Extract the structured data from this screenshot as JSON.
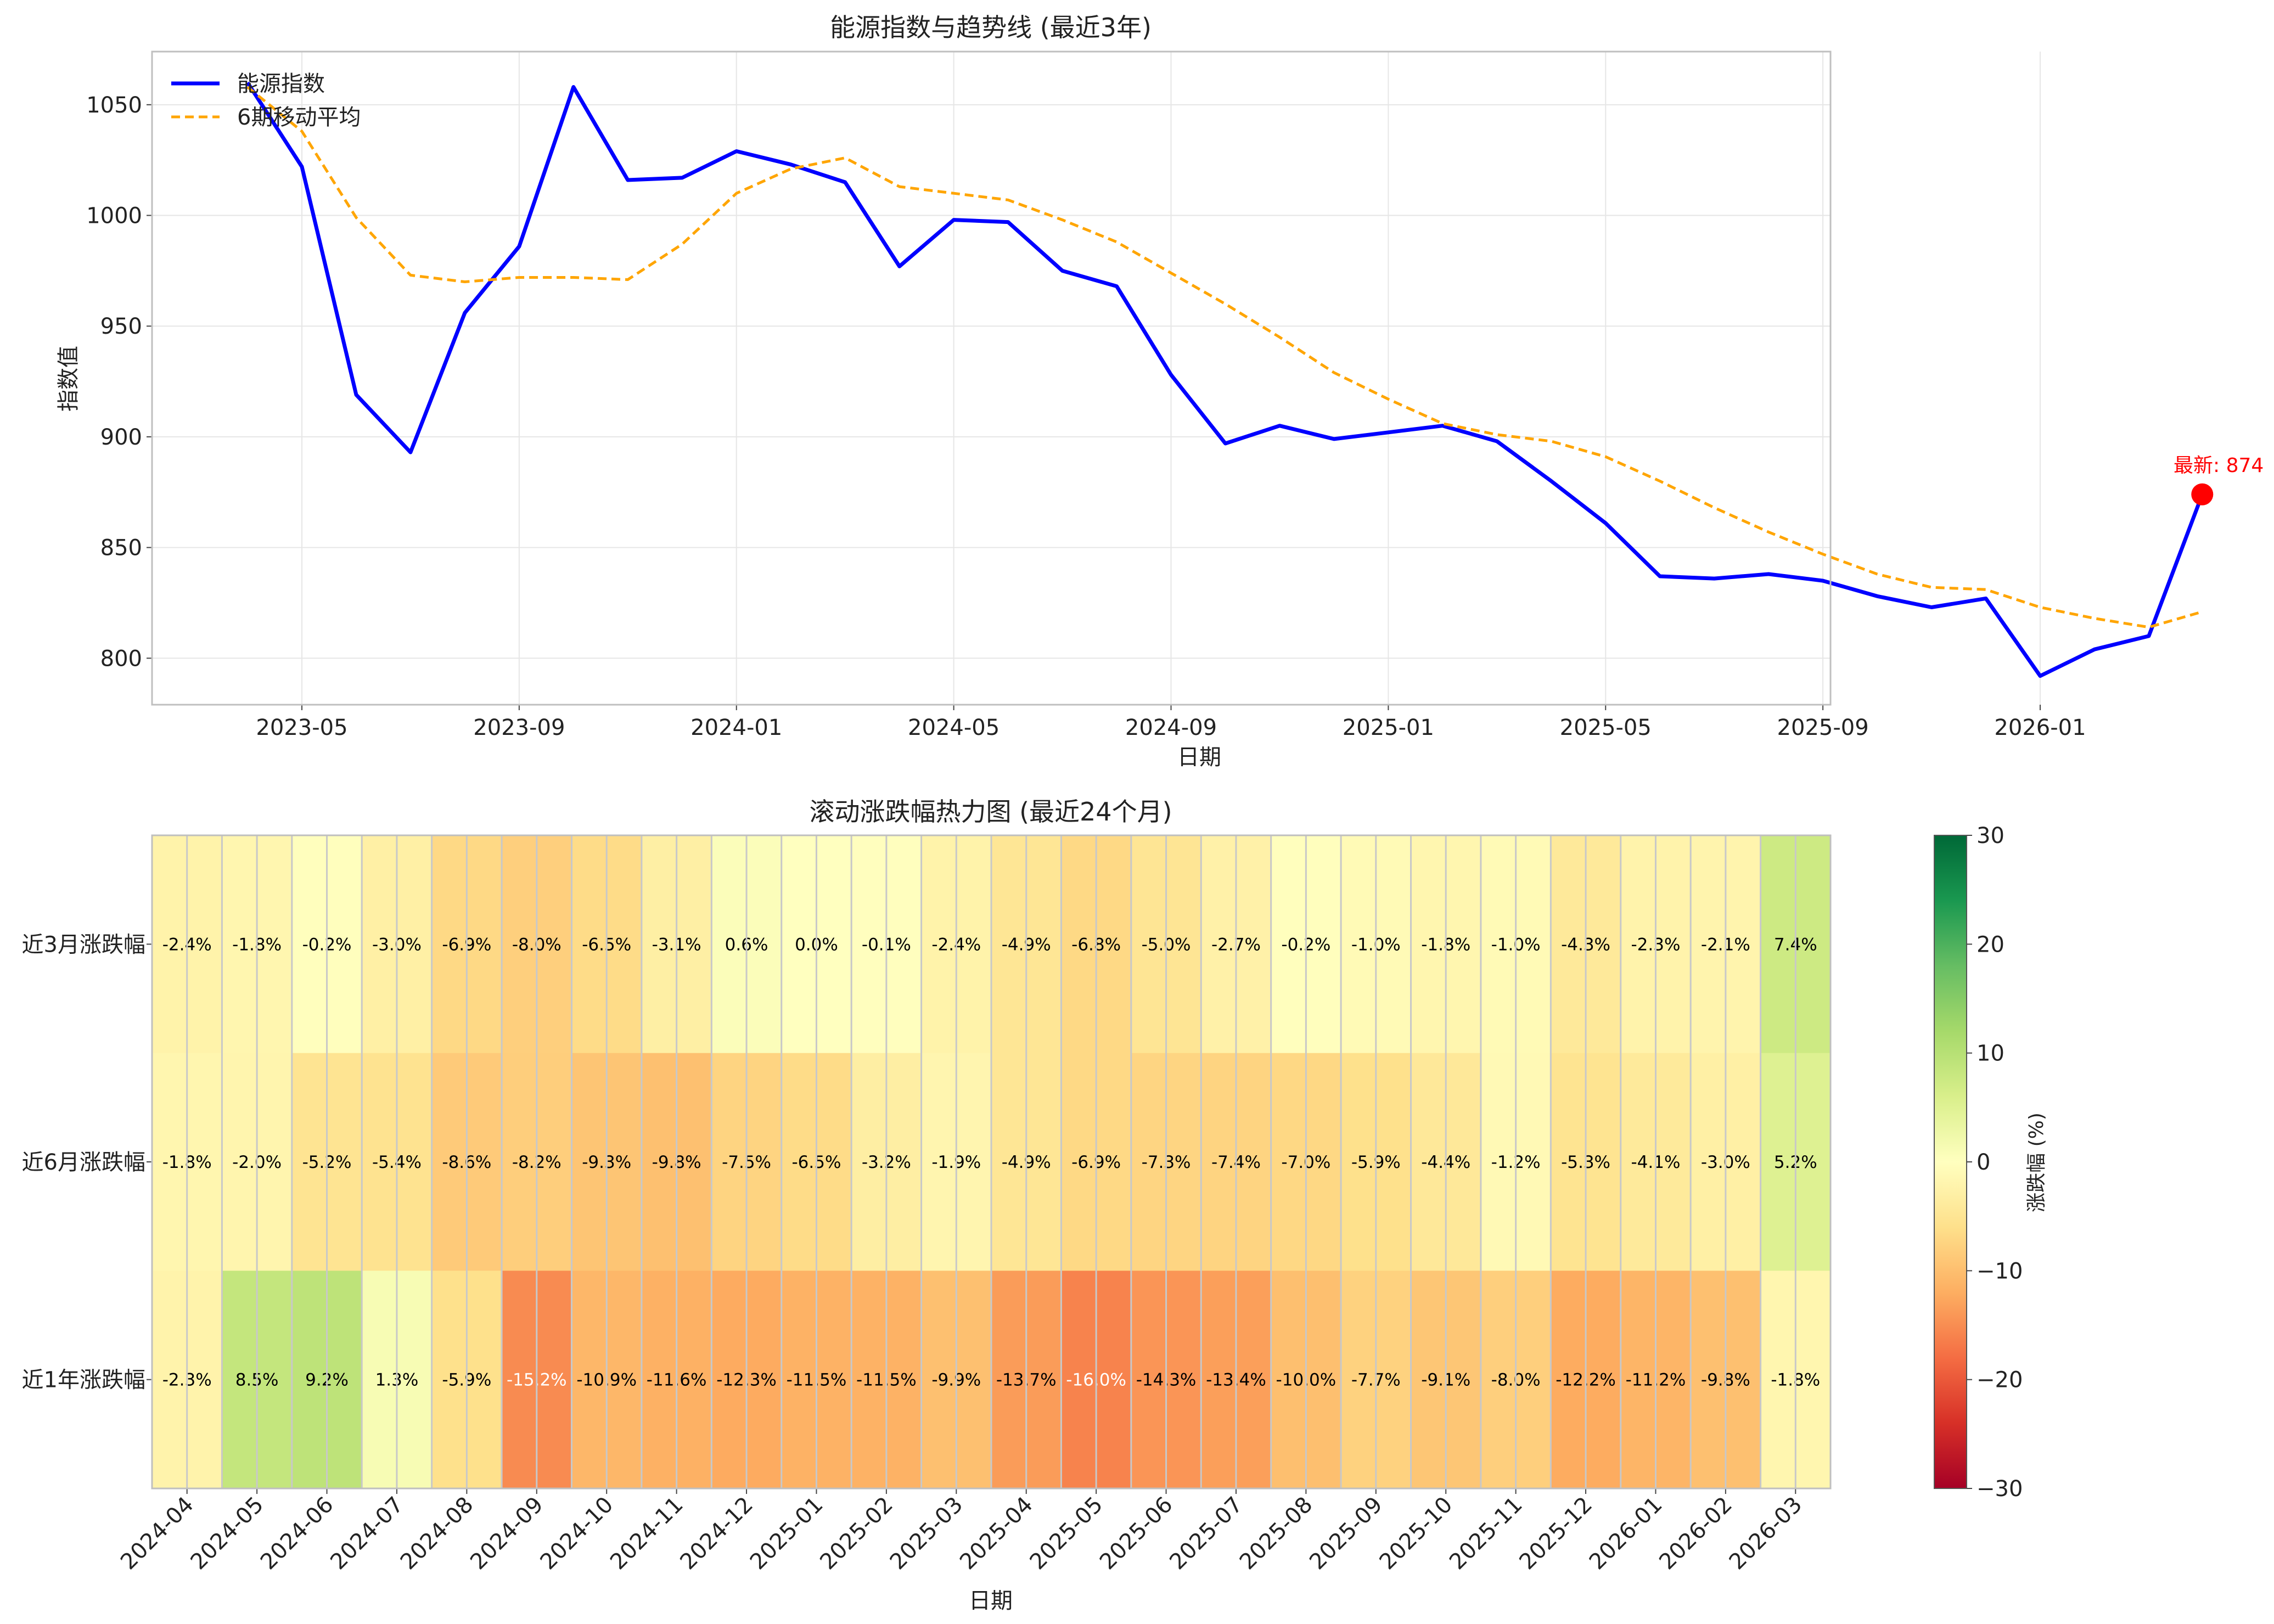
{
  "chart_data": [
    {
      "type": "line",
      "title": "能源指数与趋势线 (最近3年)",
      "xlabel": "日期",
      "ylabel": "指数值",
      "ylim": [
        779,
        1074
      ],
      "grid": true,
      "legend_position": "top-left",
      "x_tick_labels": [
        "2023-05",
        "2023-09",
        "2024-01",
        "2024-05",
        "2024-09",
        "2025-01",
        "2025-05",
        "2025-09",
        "2026-01"
      ],
      "y_ticks": [
        800,
        850,
        900,
        950,
        1000,
        1050
      ],
      "x": [
        "2023-04",
        "2023-05",
        "2023-06",
        "2023-07",
        "2023-08",
        "2023-09",
        "2023-10",
        "2023-11",
        "2023-12",
        "2024-01",
        "2024-02",
        "2024-03",
        "2024-04",
        "2024-05",
        "2024-06",
        "2024-07",
        "2024-08",
        "2024-09",
        "2024-10",
        "2024-11",
        "2024-12",
        "2025-01",
        "2025-02",
        "2025-03",
        "2025-04",
        "2025-05",
        "2025-06",
        "2025-07",
        "2025-08",
        "2025-09",
        "2025-10",
        "2025-11",
        "2025-12",
        "2026-01",
        "2026-02",
        "2026-03",
        "2026-03-31"
      ],
      "series": [
        {
          "name": "能源指数",
          "color": "#0000ff",
          "values": [
            1060,
            1022,
            919,
            893,
            956,
            986,
            1058,
            1016,
            1017,
            1029,
            1023,
            1015,
            977,
            998,
            997,
            975,
            968,
            928,
            897,
            905,
            899,
            902,
            905,
            898,
            880,
            861,
            837,
            836,
            838,
            835,
            828,
            823,
            827,
            792,
            804,
            810,
            874
          ]
        },
        {
          "name": "6期移动平均",
          "color": "#ffa500",
          "values": [
            1058,
            1038,
            999,
            973,
            970,
            972,
            972,
            971,
            987,
            1010,
            1021,
            1026,
            1013,
            1010,
            1007,
            998,
            988,
            974,
            960,
            945,
            929,
            917,
            906,
            901,
            898,
            891,
            880,
            868,
            857,
            847,
            838,
            832,
            831,
            823,
            818,
            814,
            821
          ]
        }
      ],
      "annotation": {
        "text": "最新: 874",
        "color": "#ff0000",
        "value": 874
      }
    },
    {
      "type": "heatmap",
      "title": "滚动涨跌幅热力图 (最近24个月)",
      "xlabel": "日期",
      "categories": [
        "2024-04",
        "2024-05",
        "2024-06",
        "2024-07",
        "2024-08",
        "2024-09",
        "2024-10",
        "2024-11",
        "2024-12",
        "2025-01",
        "2025-02",
        "2025-03",
        "2025-04",
        "2025-05",
        "2025-06",
        "2025-07",
        "2025-08",
        "2025-09",
        "2025-10",
        "2025-11",
        "2025-12",
        "2026-01",
        "2026-02",
        "2026-03"
      ],
      "rows": [
        {
          "name": "近3月涨跌幅",
          "values": [
            -2.4,
            -1.8,
            -0.2,
            -3.0,
            -6.9,
            -8.0,
            -6.5,
            -3.1,
            0.6,
            0.0,
            -0.1,
            -2.4,
            -4.9,
            -6.8,
            -5.0,
            -2.7,
            -0.2,
            -1.0,
            -1.8,
            -1.0,
            -4.3,
            -2.3,
            -2.1,
            7.4
          ]
        },
        {
          "name": "近6月涨跌幅",
          "values": [
            -1.8,
            -2.0,
            -5.2,
            -5.4,
            -8.6,
            -8.2,
            -9.3,
            -9.8,
            -7.5,
            -6.5,
            -3.2,
            -1.9,
            -4.9,
            -6.9,
            -7.3,
            -7.4,
            -7.0,
            -5.9,
            -4.4,
            -1.2,
            -5.3,
            -4.1,
            -3.0,
            5.2
          ]
        },
        {
          "name": "近1年涨跌幅",
          "values": [
            -2.3,
            8.5,
            9.2,
            1.3,
            -5.9,
            -15.2,
            -10.9,
            -11.6,
            -12.3,
            -11.5,
            -11.5,
            -9.9,
            -13.7,
            -16.0,
            -14.3,
            -13.4,
            -10.0,
            -7.7,
            -9.1,
            -8.0,
            -12.2,
            -11.2,
            -9.8,
            -1.8
          ]
        }
      ],
      "colorbar": {
        "label": "涨跌幅 (%)",
        "min": -30,
        "max": 30,
        "ticks": [
          -30,
          -20,
          -10,
          0,
          10,
          20,
          30
        ],
        "colormap": "RdYlGn"
      }
    }
  ]
}
